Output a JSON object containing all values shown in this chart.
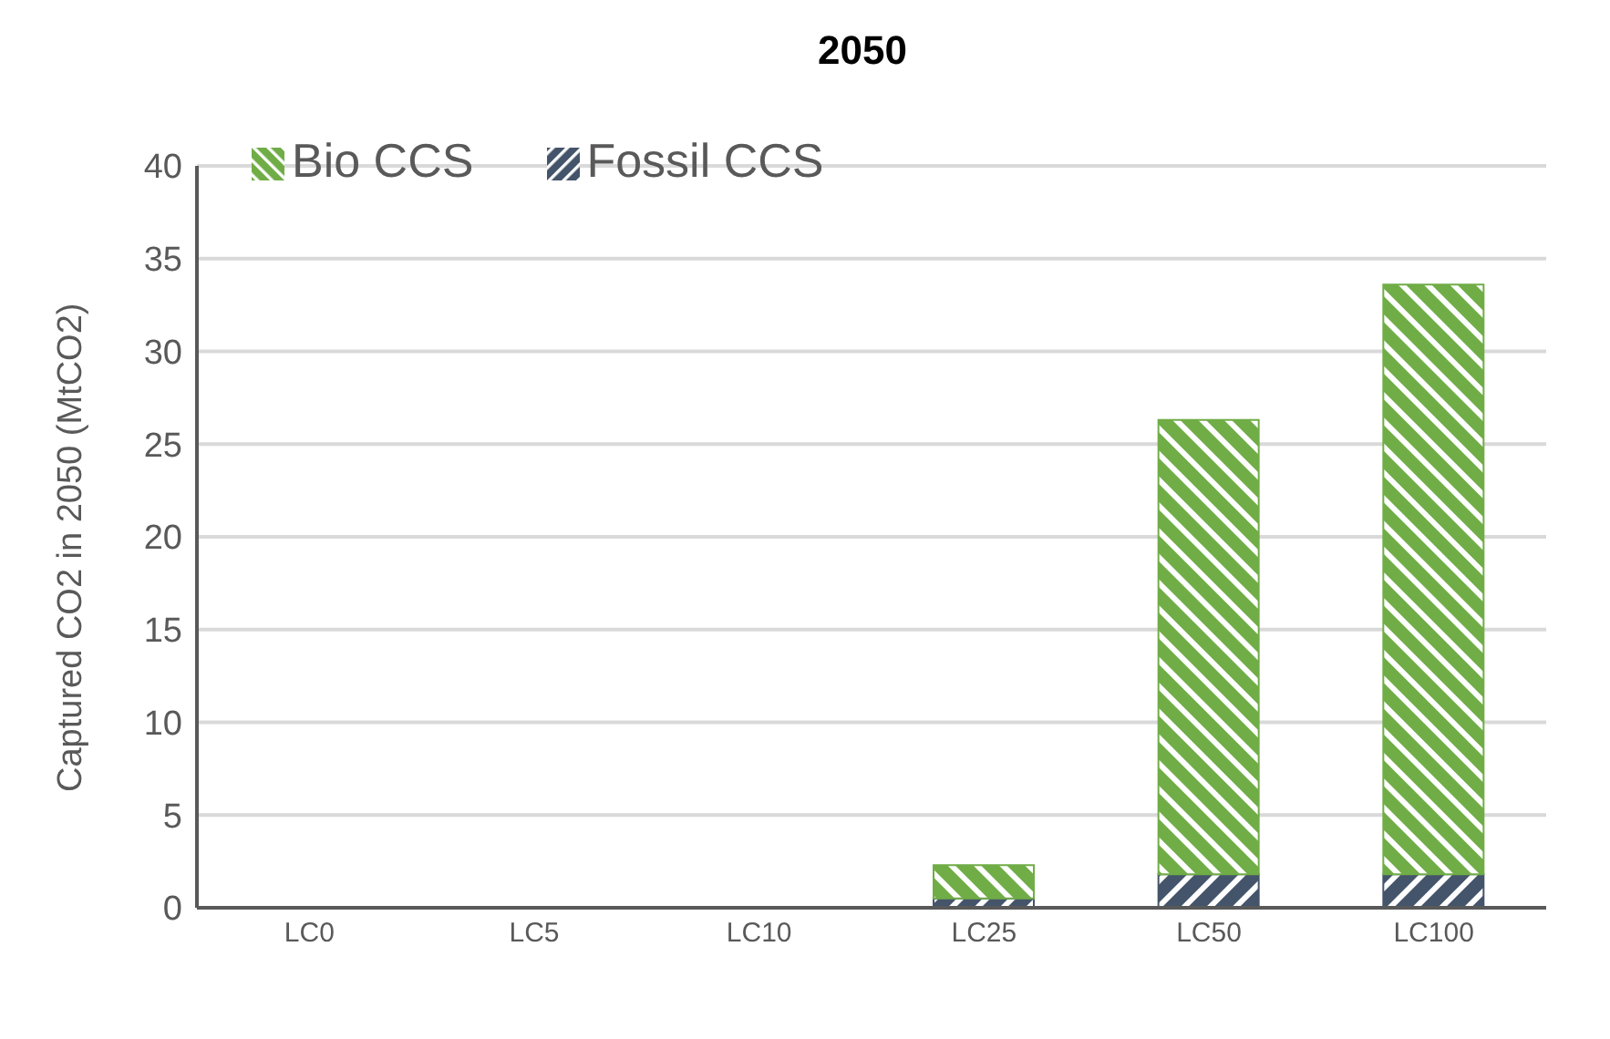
{
  "chart_data": {
    "type": "bar",
    "title": "2050",
    "ylabel": "Captured CO2 in 2050 (MtCO2)",
    "categories": [
      "LC0",
      "LC5",
      "LC10",
      "LC25",
      "LC50",
      "LC100"
    ],
    "series": [
      {
        "name": "Fossil CCS",
        "color": "#44546a",
        "values": [
          0,
          0,
          0,
          0.5,
          1.8,
          1.8
        ]
      },
      {
        "name": "Bio CCS",
        "color": "#70ad47",
        "values": [
          0,
          0,
          0,
          1.8,
          24.5,
          31.8
        ]
      }
    ],
    "stacked": true,
    "ylim": [
      0,
      40
    ],
    "yticks": [
      0,
      5,
      10,
      15,
      20,
      25,
      30,
      35,
      40
    ],
    "grid": "y",
    "legend": "top left"
  }
}
